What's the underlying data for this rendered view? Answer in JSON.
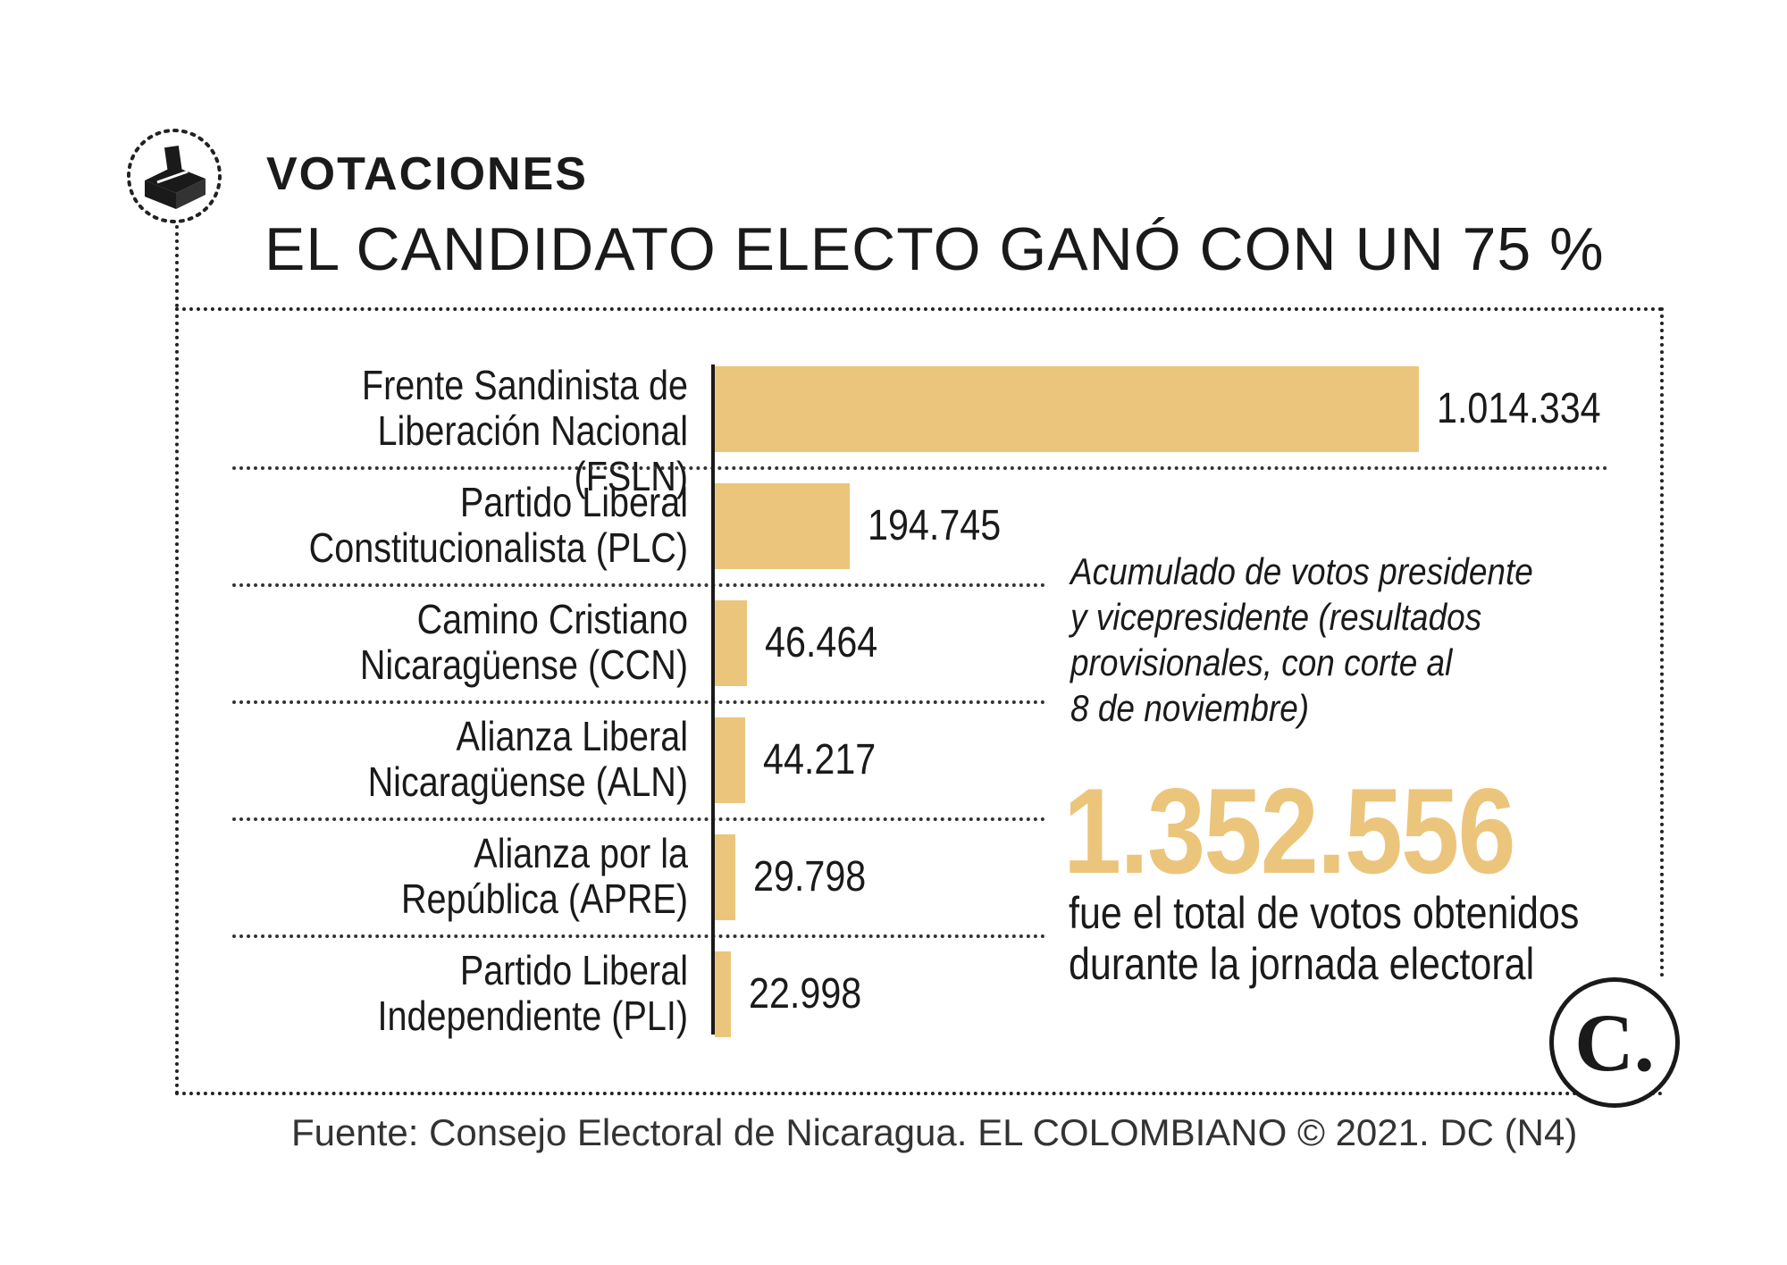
{
  "header": {
    "kicker": "VOTACIONES",
    "headline": "EL CANDIDATO ELECTO GANÓ CON UN 75 %",
    "icon": "ballot-box-icon"
  },
  "chart_data": {
    "type": "bar",
    "orientation": "horizontal",
    "categories": [
      "Frente Sandinista de Liberación Nacional (FSLN)",
      "Partido Liberal Constitucionalista (PLC)",
      "Camino Cristiano Nicaragüense (CCN)",
      "Alianza Liberal Nicaragüense (ALN)",
      "Alianza por la República (APRE)",
      "Partido Liberal Independiente (PLI)"
    ],
    "label_lines": [
      [
        "Frente Sandinista de",
        "Liberación Nacional (FSLN)"
      ],
      [
        "Partido Liberal",
        "Constitucionalista (PLC)"
      ],
      [
        "Camino Cristiano",
        "Nicaragüense (CCN)"
      ],
      [
        "Alianza Liberal",
        "Nicaragüense (ALN)"
      ],
      [
        "Alianza por la",
        "República (APRE)"
      ],
      [
        "Partido Liberal",
        "Independiente (PLI)"
      ]
    ],
    "values": [
      1014334,
      194745,
      46464,
      44217,
      29798,
      22998
    ],
    "value_labels": [
      "1.014.334",
      "194.745",
      "46.464",
      "44.217",
      "29.798",
      "22.998"
    ],
    "bar_color": "#ecc57c",
    "grid": false,
    "legend": "none"
  },
  "note": {
    "lines": [
      "Acumulado de votos presidente",
      "y vicepresidente (resultados",
      "provisionales, con corte al",
      "8 de noviembre)"
    ]
  },
  "total": {
    "value": "1.352.556",
    "caption_lines": [
      "fue el total de votos obtenidos",
      "durante la jornada electoral"
    ]
  },
  "source": "Fuente: Consejo Electoral de Nicaragua. EL COLOMBIANO © 2021. DC (N4)",
  "logo": {
    "letter": "C."
  },
  "colors": {
    "accent": "#ecc57c",
    "text": "#1a1a1a"
  }
}
